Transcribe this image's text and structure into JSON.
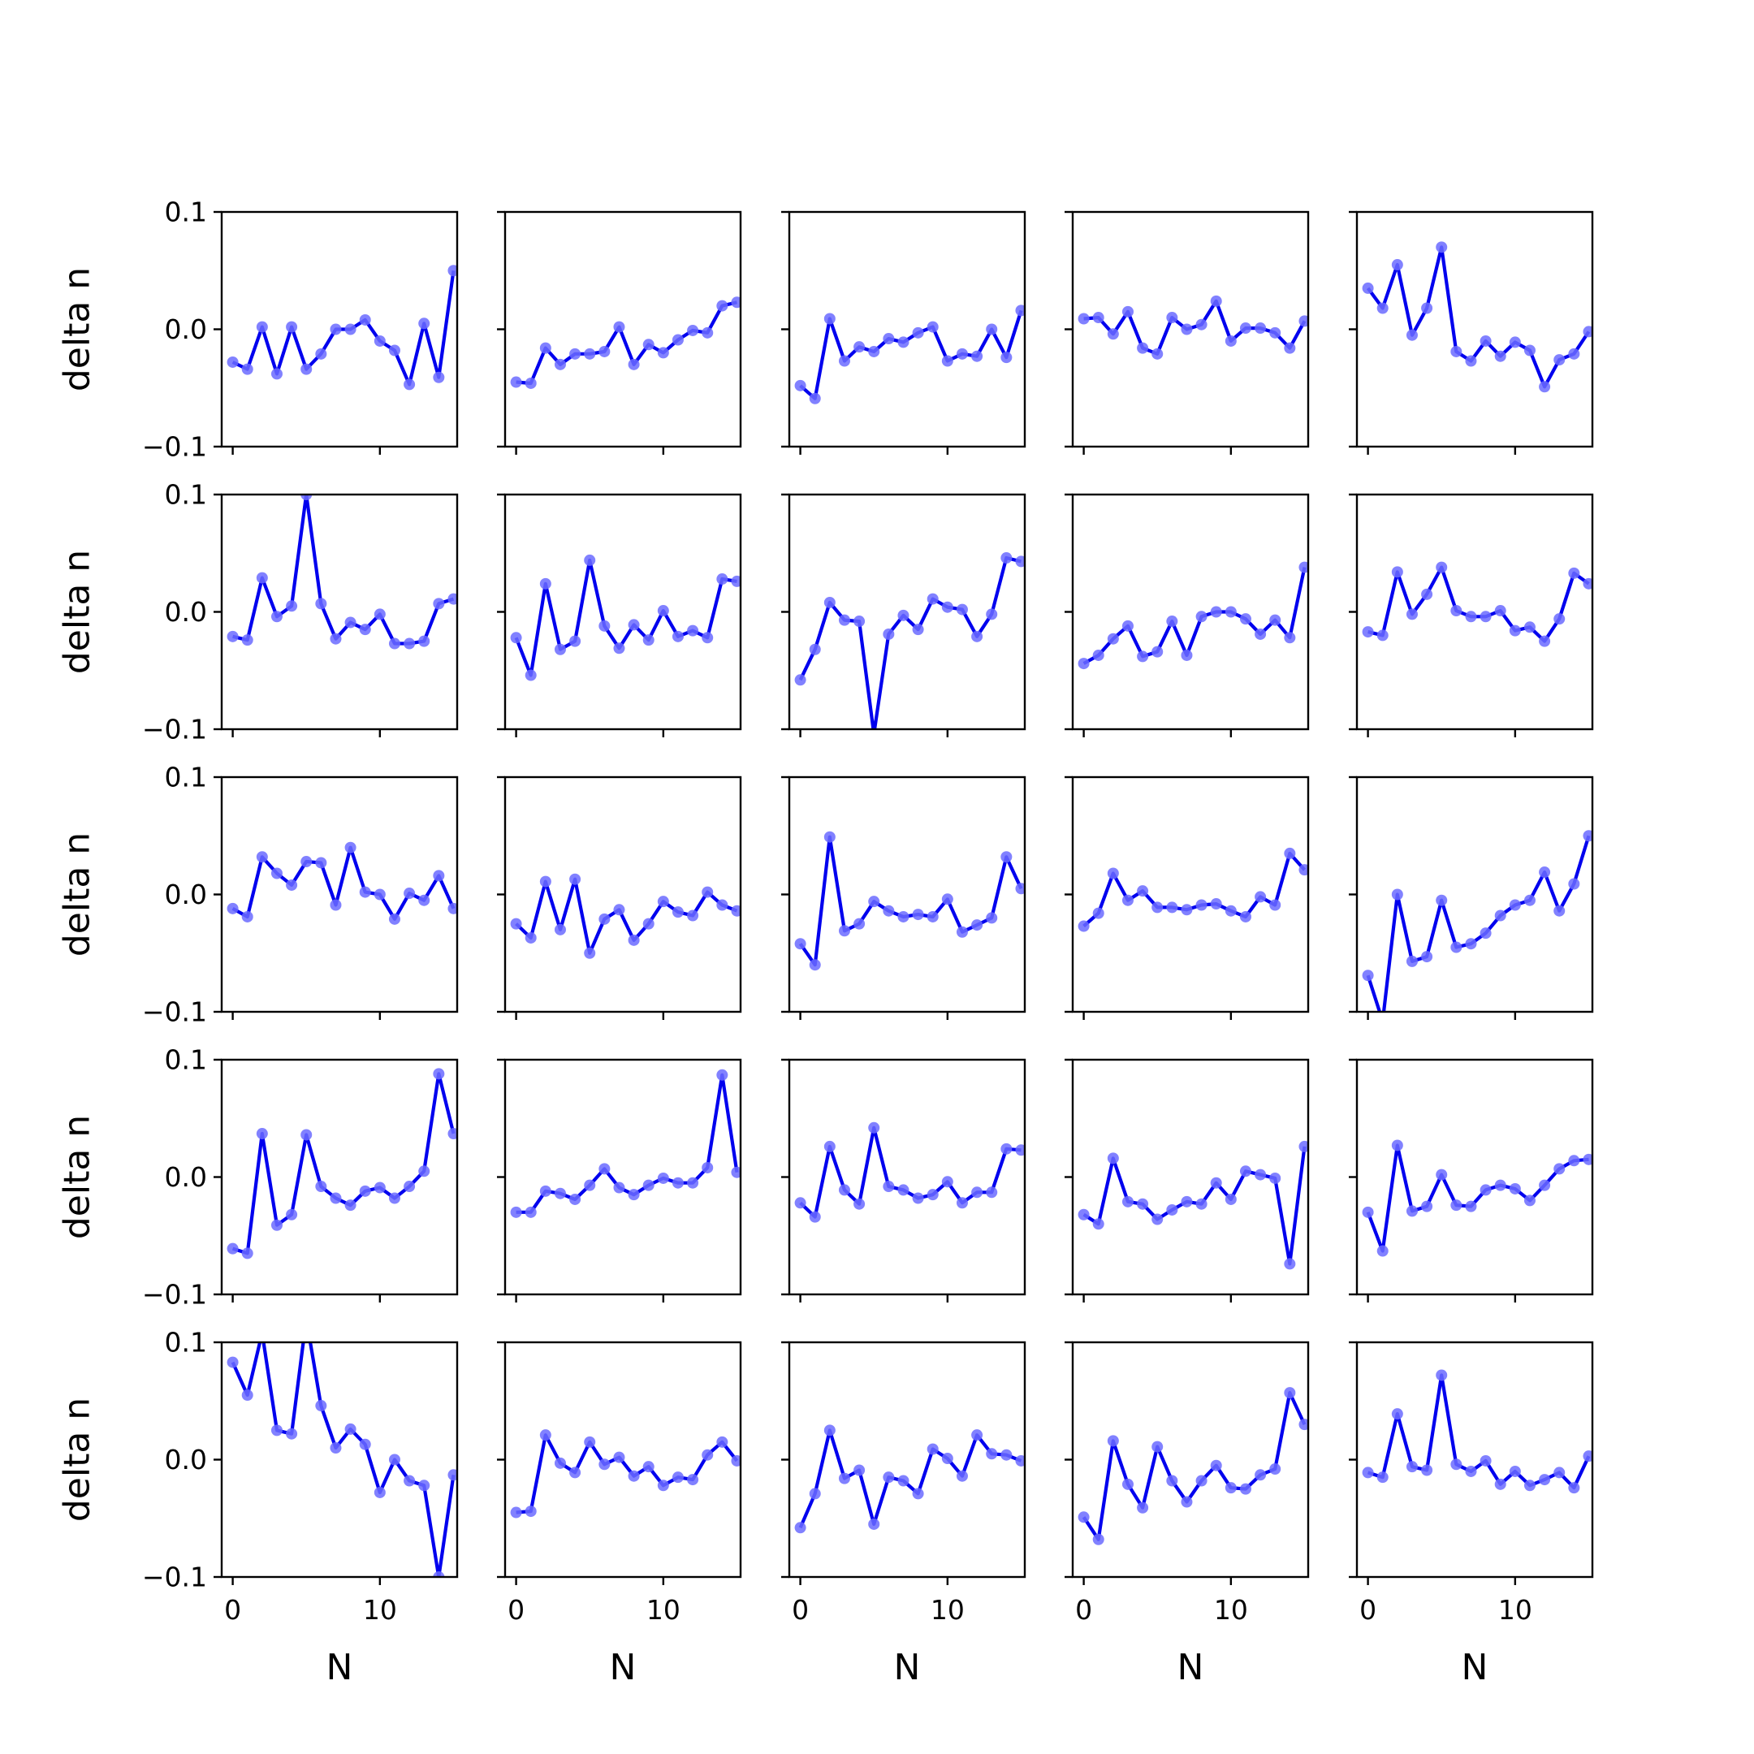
{
  "chart_data": {
    "type": "line",
    "layout": "5x5 grid of subplots",
    "shared_axes": true,
    "xlabel": "N",
    "ylabel": "delta n",
    "ylim": [
      -0.1,
      0.1
    ],
    "yticks": [
      -0.1,
      0.0,
      0.1
    ],
    "ytick_labels": [
      "−0.1",
      "0.0",
      "0.1"
    ],
    "xlim": [
      -0.75,
      15.25
    ],
    "xticks": [
      0,
      10
    ],
    "xtick_labels": [
      "0",
      "10"
    ],
    "x": [
      0,
      1,
      2,
      3,
      4,
      5,
      6,
      7,
      8,
      9,
      10,
      11,
      12,
      13,
      14,
      15
    ],
    "line_color": "#0000ee",
    "marker_color": "#6b6bff",
    "grid": false,
    "legend": "none",
    "panels": [
      {
        "row": 1,
        "col": 1,
        "values": [
          -0.028,
          -0.034,
          0.002,
          -0.038,
          0.002,
          -0.034,
          -0.021,
          0.0,
          0.0,
          0.008,
          -0.01,
          -0.018,
          -0.047,
          0.005,
          -0.041,
          0.05
        ]
      },
      {
        "row": 1,
        "col": 2,
        "values": [
          -0.045,
          -0.046,
          -0.016,
          -0.03,
          -0.021,
          -0.021,
          -0.019,
          0.002,
          -0.03,
          -0.013,
          -0.02,
          -0.009,
          -0.001,
          -0.003,
          0.02,
          0.023
        ]
      },
      {
        "row": 1,
        "col": 3,
        "values": [
          -0.048,
          -0.059,
          0.009,
          -0.027,
          -0.015,
          -0.019,
          -0.008,
          -0.011,
          -0.003,
          0.002,
          -0.027,
          -0.021,
          -0.023,
          0.0,
          -0.024,
          0.016
        ]
      },
      {
        "row": 1,
        "col": 4,
        "values": [
          0.009,
          0.01,
          -0.004,
          0.015,
          -0.016,
          -0.021,
          0.01,
          0.0,
          0.004,
          0.024,
          -0.01,
          0.001,
          0.001,
          -0.003,
          -0.016,
          0.007
        ]
      },
      {
        "row": 1,
        "col": 5,
        "values": [
          0.035,
          0.018,
          0.055,
          -0.005,
          0.018,
          0.07,
          -0.019,
          -0.027,
          -0.01,
          -0.023,
          -0.011,
          -0.018,
          -0.049,
          -0.026,
          -0.021,
          -0.002
        ]
      },
      {
        "row": 2,
        "col": 1,
        "values": [
          -0.021,
          -0.024,
          0.029,
          -0.004,
          0.005,
          0.1,
          0.007,
          -0.023,
          -0.009,
          -0.015,
          -0.002,
          -0.027,
          -0.027,
          -0.025,
          0.007,
          0.011
        ]
      },
      {
        "row": 2,
        "col": 2,
        "values": [
          -0.022,
          -0.054,
          0.024,
          -0.032,
          -0.025,
          0.044,
          -0.012,
          -0.031,
          -0.011,
          -0.024,
          0.001,
          -0.021,
          -0.016,
          -0.022,
          0.028,
          0.026
        ]
      },
      {
        "row": 2,
        "col": 3,
        "values": [
          -0.058,
          -0.032,
          0.008,
          -0.007,
          -0.008,
          -0.104,
          -0.019,
          -0.003,
          -0.015,
          0.011,
          0.004,
          0.002,
          -0.021,
          -0.002,
          0.046,
          0.043
        ]
      },
      {
        "row": 2,
        "col": 4,
        "values": [
          -0.044,
          -0.037,
          -0.023,
          -0.012,
          -0.038,
          -0.034,
          -0.008,
          -0.037,
          -0.004,
          0.0,
          0.0,
          -0.006,
          -0.019,
          -0.007,
          -0.022,
          0.038
        ]
      },
      {
        "row": 2,
        "col": 5,
        "values": [
          -0.017,
          -0.02,
          0.034,
          -0.002,
          0.015,
          0.038,
          0.001,
          -0.004,
          -0.004,
          0.001,
          -0.016,
          -0.013,
          -0.025,
          -0.006,
          0.033,
          0.024
        ]
      },
      {
        "row": 3,
        "col": 1,
        "values": [
          -0.012,
          -0.019,
          0.032,
          0.018,
          0.008,
          0.028,
          0.027,
          -0.009,
          0.04,
          0.002,
          0.0,
          -0.021,
          0.001,
          -0.005,
          0.016,
          -0.012
        ]
      },
      {
        "row": 3,
        "col": 2,
        "values": [
          -0.025,
          -0.037,
          0.011,
          -0.03,
          0.013,
          -0.05,
          -0.021,
          -0.013,
          -0.039,
          -0.025,
          -0.006,
          -0.015,
          -0.018,
          0.002,
          -0.009,
          -0.014
        ]
      },
      {
        "row": 3,
        "col": 3,
        "values": [
          -0.042,
          -0.06,
          0.049,
          -0.031,
          -0.025,
          -0.006,
          -0.014,
          -0.019,
          -0.017,
          -0.019,
          -0.004,
          -0.032,
          -0.026,
          -0.02,
          0.032,
          0.005
        ]
      },
      {
        "row": 3,
        "col": 4,
        "values": [
          -0.027,
          -0.016,
          0.018,
          -0.005,
          0.003,
          -0.011,
          -0.011,
          -0.013,
          -0.009,
          -0.008,
          -0.014,
          -0.019,
          -0.002,
          -0.009,
          0.035,
          0.021
        ]
      },
      {
        "row": 3,
        "col": 5,
        "values": [
          -0.069,
          -0.108,
          0.0,
          -0.057,
          -0.053,
          -0.005,
          -0.045,
          -0.042,
          -0.033,
          -0.018,
          -0.009,
          -0.005,
          0.019,
          -0.014,
          0.009,
          0.05
        ]
      },
      {
        "row": 4,
        "col": 1,
        "values": [
          -0.061,
          -0.065,
          0.037,
          -0.041,
          -0.032,
          0.036,
          -0.008,
          -0.018,
          -0.024,
          -0.012,
          -0.009,
          -0.018,
          -0.008,
          0.005,
          0.088,
          0.037
        ]
      },
      {
        "row": 4,
        "col": 2,
        "values": [
          -0.03,
          -0.03,
          -0.012,
          -0.014,
          -0.019,
          -0.007,
          0.007,
          -0.009,
          -0.015,
          -0.007,
          -0.001,
          -0.005,
          -0.005,
          0.008,
          0.087,
          0.004
        ]
      },
      {
        "row": 4,
        "col": 3,
        "values": [
          -0.022,
          -0.034,
          0.026,
          -0.011,
          -0.023,
          0.042,
          -0.008,
          -0.011,
          -0.018,
          -0.015,
          -0.004,
          -0.022,
          -0.013,
          -0.013,
          0.024,
          0.023
        ]
      },
      {
        "row": 4,
        "col": 4,
        "values": [
          -0.032,
          -0.04,
          0.016,
          -0.021,
          -0.023,
          -0.036,
          -0.028,
          -0.021,
          -0.023,
          -0.005,
          -0.019,
          0.005,
          0.002,
          -0.001,
          -0.074,
          0.026
        ]
      },
      {
        "row": 4,
        "col": 5,
        "values": [
          -0.03,
          -0.063,
          0.027,
          -0.029,
          -0.025,
          0.002,
          -0.024,
          -0.025,
          -0.011,
          -0.007,
          -0.01,
          -0.02,
          -0.007,
          0.007,
          0.014,
          0.015
        ]
      },
      {
        "row": 5,
        "col": 1,
        "values": [
          0.083,
          0.055,
          0.108,
          0.025,
          0.022,
          0.12,
          0.046,
          0.01,
          0.026,
          0.013,
          -0.028,
          0.0,
          -0.018,
          -0.022,
          -0.1,
          -0.013
        ]
      },
      {
        "row": 5,
        "col": 2,
        "values": [
          -0.045,
          -0.044,
          0.021,
          -0.003,
          -0.011,
          0.015,
          -0.004,
          0.002,
          -0.014,
          -0.006,
          -0.022,
          -0.015,
          -0.017,
          0.004,
          0.015,
          -0.001
        ]
      },
      {
        "row": 5,
        "col": 3,
        "values": [
          -0.058,
          -0.029,
          0.025,
          -0.016,
          -0.009,
          -0.055,
          -0.015,
          -0.018,
          -0.029,
          0.009,
          0.001,
          -0.014,
          0.021,
          0.005,
          0.004,
          -0.001
        ]
      },
      {
        "row": 5,
        "col": 4,
        "values": [
          -0.049,
          -0.068,
          0.016,
          -0.021,
          -0.041,
          0.011,
          -0.018,
          -0.036,
          -0.018,
          -0.005,
          -0.024,
          -0.025,
          -0.013,
          -0.008,
          0.057,
          0.03
        ]
      },
      {
        "row": 5,
        "col": 5,
        "values": [
          -0.011,
          -0.015,
          0.039,
          -0.006,
          -0.009,
          0.072,
          -0.004,
          -0.01,
          -0.001,
          -0.021,
          -0.01,
          -0.022,
          -0.017,
          -0.011,
          -0.024,
          0.003
        ]
      }
    ]
  }
}
